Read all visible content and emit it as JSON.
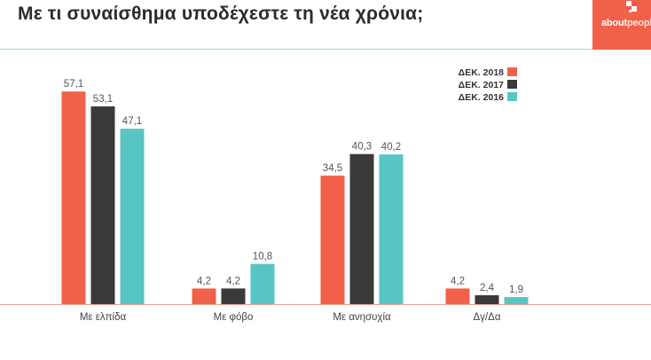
{
  "header": {
    "title": "Με τι συναίσθημα υποδέχεστε τη νέα χρόνια;",
    "logo_text_a": "about",
    "logo_text_b": "people"
  },
  "colors": {
    "series_2018": "#f1614a",
    "series_2017": "#3a3a3a",
    "series_2016": "#57c5c4",
    "baseline": "#f1a08f",
    "rule": "#9dd7d6"
  },
  "chart_data": {
    "type": "bar",
    "title": "Με τι συναίσθημα υποδέχεστε τη νέα χρόνια;",
    "xlabel": "",
    "ylabel": "",
    "ylim": [
      0,
      60
    ],
    "grid": false,
    "legend": "top-right",
    "categories": [
      "Με ελπίδα",
      "Με φόβο",
      "Με ανησυχία",
      "Δγ/Δα"
    ],
    "series": [
      {
        "name": "ΔΕΚ. 2018",
        "values": [
          57.1,
          4.2,
          34.5,
          4.2
        ],
        "labels": [
          "57,1",
          "4,2",
          "34,5",
          "4,2"
        ]
      },
      {
        "name": "ΔΕΚ. 2017",
        "values": [
          53.1,
          4.2,
          40.3,
          2.4
        ],
        "labels": [
          "53,1",
          "4,2",
          "40,3",
          "2,4"
        ]
      },
      {
        "name": "ΔΕΚ. 2016",
        "values": [
          47.1,
          10.8,
          40.2,
          1.9
        ],
        "labels": [
          "47,1",
          "10,8",
          "40,2",
          "1,9"
        ]
      }
    ]
  }
}
